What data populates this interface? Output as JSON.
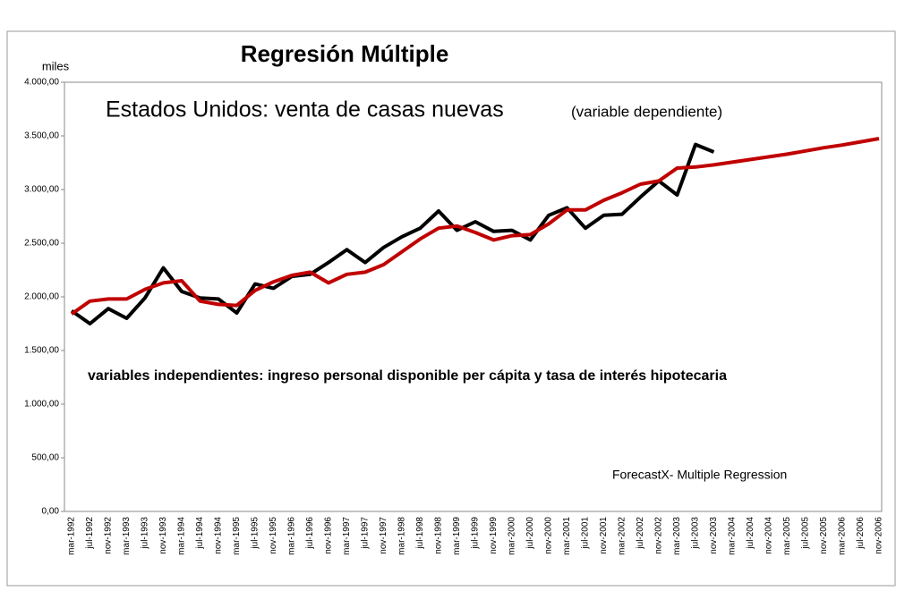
{
  "chart_data": {
    "type": "line",
    "title": "Regresión Múltiple",
    "y_label": "miles",
    "subtitle": "Estados Unidos: venta de casas nuevas",
    "subtitle_note": "(variable dependiente)",
    "annotations": [
      "variables independientes: ingreso personal disponible per cápita y tasa de interés hipotecaria",
      "ForecastX- Multiple Regression"
    ],
    "categories": [
      "mar-1992",
      "jul-1992",
      "nov-1992",
      "mar-1993",
      "jul-1993",
      "nov-1993",
      "mar-1994",
      "jul-1994",
      "nov-1994",
      "mar-1995",
      "jul-1995",
      "nov-1995",
      "mar-1996",
      "jul-1996",
      "nov-1996",
      "mar-1997",
      "jul-1997",
      "nov-1997",
      "mar-1998",
      "jul-1998",
      "nov-1998",
      "mar-1999",
      "jul-1999",
      "nov-1999",
      "mar-2000",
      "jul-2000",
      "nov-2000",
      "mar-2001",
      "jul-2001",
      "nov-2001",
      "mar-2002",
      "jul-2002",
      "nov-2002",
      "mar-2003",
      "jul-2003",
      "nov-2003",
      "mar-2004",
      "jul-2004",
      "nov-2004",
      "mar-2005",
      "jul-2005",
      "nov-2005",
      "mar-2006",
      "jul-2006",
      "nov-2006"
    ],
    "series": [
      {
        "color": "#000000",
        "values": [
          1870,
          1750,
          1890,
          1800,
          1990,
          2270,
          2050,
          1990,
          1980,
          1850,
          2120,
          2080,
          2190,
          2210,
          2320,
          2440,
          2320,
          2460,
          2560,
          2640,
          2800,
          2620,
          2700,
          2610,
          2620,
          2530,
          2760,
          2830,
          2640,
          2760,
          2770,
          2930,
          3080,
          2950,
          3420,
          3350,
          null,
          null,
          null,
          null,
          null,
          null,
          null,
          null,
          null
        ]
      },
      {
        "color": "#c00000",
        "values": [
          1840,
          1960,
          1980,
          1980,
          2070,
          2130,
          2150,
          1960,
          1930,
          1920,
          2060,
          2140,
          2200,
          2230,
          2130,
          2210,
          2230,
          2300,
          2420,
          2540,
          2640,
          2660,
          2600,
          2530,
          2570,
          2580,
          2680,
          2810,
          2810,
          2900,
          2970,
          3050,
          3080,
          3200,
          3210,
          3230,
          3255,
          3280,
          3305,
          3330,
          3360,
          3390,
          3415,
          3445,
          3475
        ]
      }
    ],
    "ylim": [
      0,
      4000
    ],
    "yticks": [
      {
        "value": 0,
        "label": "0,00"
      },
      {
        "value": 500,
        "label": "500,00"
      },
      {
        "value": 1000,
        "label": "1.000,00"
      },
      {
        "value": 1500,
        "label": "1.500,00"
      },
      {
        "value": 2000,
        "label": "2.000,00"
      },
      {
        "value": 2500,
        "label": "2.500,00"
      },
      {
        "value": 3000,
        "label": "3.000,00"
      },
      {
        "value": 3500,
        "label": "3.500,00"
      },
      {
        "value": 4000,
        "label": "4.000,00"
      }
    ],
    "grid": false
  }
}
